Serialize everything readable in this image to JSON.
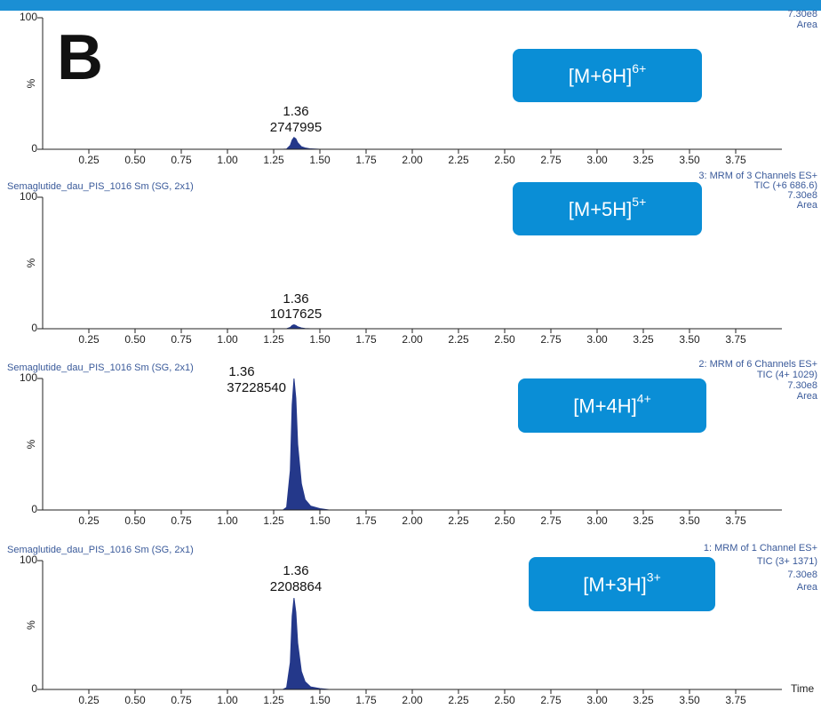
{
  "figure_label": "B",
  "chart_data": [
    {
      "type": "area",
      "info": [
        "7.30e8",
        "Area"
      ],
      "ion": "[M+6H]",
      "charge": "6+",
      "annotations": [
        "1.36",
        "2747995"
      ],
      "x": [
        1.3,
        1.32,
        1.34,
        1.35,
        1.36,
        1.37,
        1.38,
        1.4,
        1.42,
        1.45,
        1.5,
        1.55
      ],
      "values": [
        0,
        0.2,
        3,
        7,
        9,
        8,
        5,
        2,
        1,
        0.3,
        0,
        0
      ],
      "xlim": [
        0,
        4.0
      ],
      "xticks": [
        0.25,
        {
          "value": 0.5,
          "label": "0.50"
        },
        0.75,
        {
          "value": 1,
          "label": "1.00"
        },
        1.25,
        {
          "value": 1.5,
          "label": "1.50"
        },
        1.75,
        {
          "value": 2,
          "label": "2.00"
        },
        2.25,
        {
          "value": 2.5,
          "label": "2.50"
        },
        2.75,
        {
          "value": 3,
          "label": "3.00"
        },
        3.25,
        {
          "value": 3.5,
          "label": "3.50"
        },
        3.75
      ],
      "ylim": [
        0,
        100
      ],
      "yticks": [
        0,
        100
      ],
      "y_label": "%",
      "color": "#24388a"
    },
    {
      "type": "area",
      "title": "Semaglutide_dau_PIS_1016 Sm (SG, 2x1)",
      "info": [
        "3: MRM of 3 Channels ES+",
        "TIC (+6 686.6)",
        "7.30e8",
        "Area"
      ],
      "ion": "[M+5H]",
      "charge": "5+",
      "annotations": [
        "1.36",
        "1017625"
      ],
      "x": [
        1.3,
        1.32,
        1.34,
        1.35,
        1.36,
        1.37,
        1.38,
        1.4,
        1.42,
        1.45,
        1.5,
        1.55
      ],
      "values": [
        0,
        0,
        1,
        2.5,
        3,
        2.5,
        1.5,
        0.6,
        0.2,
        0,
        0,
        0
      ],
      "xlim": [
        0,
        4.0
      ],
      "xticks": [
        0.25,
        {
          "value": 0.5,
          "label": "0.50"
        },
        0.75,
        {
          "value": 1,
          "label": "1.00"
        },
        1.25,
        {
          "value": 1.5,
          "label": "1.50"
        },
        1.75,
        {
          "value": 2,
          "label": "2.00"
        },
        2.25,
        {
          "value": 2.5,
          "label": "2.50"
        },
        2.75,
        {
          "value": 3,
          "label": "3.00"
        },
        3.25,
        {
          "value": 3.5,
          "label": "3.50"
        },
        3.75
      ],
      "ylim": [
        0,
        100
      ],
      "yticks": [
        0,
        100
      ],
      "y_label": "%",
      "color": "#24388a"
    },
    {
      "type": "area",
      "title": "Semaglutide_dau_PIS_1016 Sm (SG, 2x1)",
      "info": [
        "2: MRM of 6 Channels ES+",
        "TIC (4+ 1029)",
        "7.30e8",
        "Area"
      ],
      "ion": "[M+4H]",
      "charge": "4+",
      "annotations": [
        "1.36",
        "37228540"
      ],
      "x": [
        1.3,
        1.32,
        1.34,
        1.35,
        1.36,
        1.37,
        1.38,
        1.4,
        1.42,
        1.45,
        1.5,
        1.55
      ],
      "values": [
        0,
        2,
        30,
        80,
        100,
        85,
        50,
        20,
        8,
        3,
        1,
        0
      ],
      "xlim": [
        0,
        4.0
      ],
      "xticks": [
        0.25,
        {
          "value": 0.5,
          "label": "0.50"
        },
        0.75,
        {
          "value": 1,
          "label": "1.00"
        },
        1.25,
        {
          "value": 1.5,
          "label": "1.50"
        },
        1.75,
        {
          "value": 2,
          "label": "2.00"
        },
        2.25,
        {
          "value": 2.5,
          "label": "2.50"
        },
        2.75,
        {
          "value": 3,
          "label": "3.00"
        },
        3.25,
        {
          "value": 3.5,
          "label": "3.50"
        },
        3.75
      ],
      "ylim": [
        0,
        100
      ],
      "yticks": [
        0,
        100
      ],
      "y_label": "%",
      "color": "#24388a"
    },
    {
      "type": "area",
      "title": "Semaglutide_dau_PIS_1016 Sm (SG, 2x1)",
      "info": [
        "1: MRM of 1 Channel ES+",
        "TIC (3+ 1371)",
        "7.30e8",
        "Area"
      ],
      "ion": "[M+3H]",
      "charge": "3+",
      "annotations": [
        "1.36",
        "2208864"
      ],
      "x": [
        1.3,
        1.32,
        1.34,
        1.35,
        1.36,
        1.37,
        1.38,
        1.4,
        1.42,
        1.45,
        1.5,
        1.55
      ],
      "values": [
        0,
        1.4,
        21,
        57,
        71,
        60,
        36,
        14,
        6,
        2,
        0.7,
        0
      ],
      "xlim": [
        0,
        4.0
      ],
      "xticks": [
        0.25,
        {
          "value": 0.5,
          "label": "0.50"
        },
        0.75,
        {
          "value": 1,
          "label": "1.00"
        },
        1.25,
        {
          "value": 1.5,
          "label": "1.50"
        },
        1.75,
        {
          "value": 2,
          "label": "2.00"
        },
        2.25,
        {
          "value": 2.5,
          "label": "2.50"
        },
        2.75,
        {
          "value": 3,
          "label": "3.00"
        },
        3.25,
        {
          "value": 3.5,
          "label": "3.50"
        },
        3.75
      ],
      "ylim": [
        0,
        100
      ],
      "yticks": [
        0,
        100
      ],
      "y_label": "%",
      "color": "#24388a",
      "x_label": "Time"
    }
  ]
}
